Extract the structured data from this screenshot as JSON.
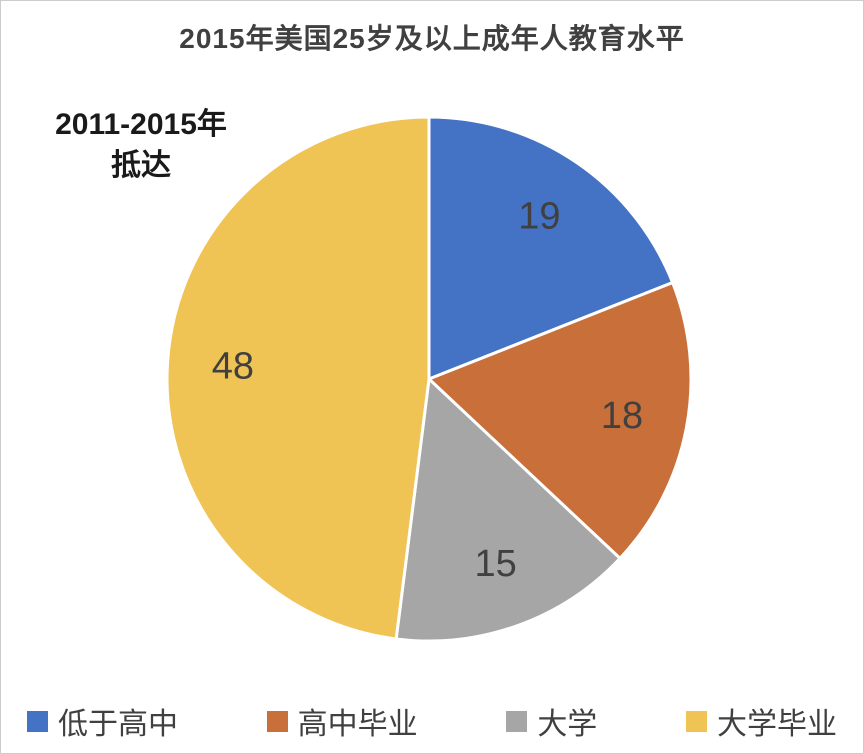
{
  "title": "2015年美国25岁及以上成年人教育水平",
  "annotation": {
    "line1": "2011-2015年",
    "line2": "抵达"
  },
  "chart_data": {
    "type": "pie",
    "title": "2015年美国25岁及以上成年人教育水平",
    "annotation": "2011-2015年 抵达",
    "start_angle_deg": 0,
    "direction": "clockwise",
    "data_labels": true,
    "legend_position": "bottom",
    "total": 100,
    "slices": [
      {
        "label": "低于高中",
        "value": 19,
        "color": "#4472C4"
      },
      {
        "label": "高中毕业",
        "value": 18,
        "color": "#C9703A"
      },
      {
        "label": "大学",
        "value": 15,
        "color": "#A6A6A6"
      },
      {
        "label": "大学毕业",
        "value": 48,
        "color": "#EFC455"
      }
    ],
    "label_color": "#404040",
    "slice_stroke_color": "#FFFFFF"
  }
}
